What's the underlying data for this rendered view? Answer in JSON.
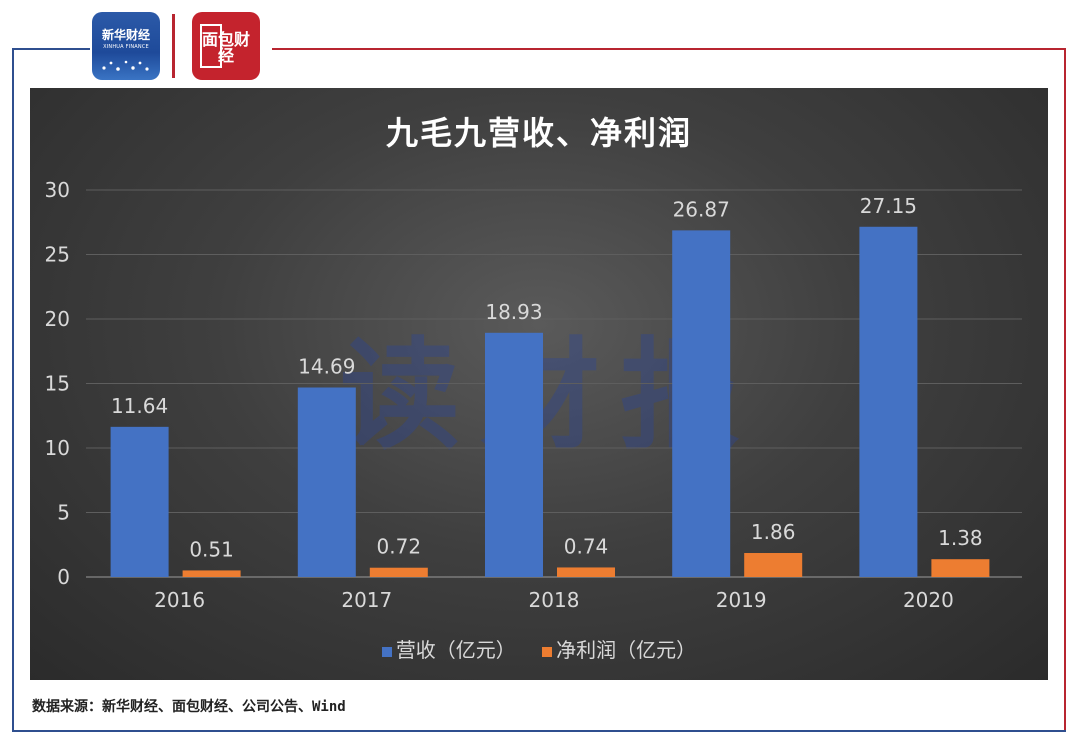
{
  "branding": {
    "xinhua_cn": "新华财经",
    "xinhua_en": "XINHUA FINANCE",
    "mianbao": "面包财经"
  },
  "watermark": "读财报",
  "source": "数据来源：新华财经、面包财经、公司公告、Wind",
  "colors": {
    "revenue": "#4472c4",
    "profit": "#ed7d31",
    "frame_blue": "#2f4f8f",
    "frame_red": "#b82530"
  },
  "chart_data": {
    "type": "bar",
    "title": "九毛九营收、净利润",
    "categories": [
      "2016",
      "2017",
      "2018",
      "2019",
      "2020"
    ],
    "series": [
      {
        "name": "营收（亿元）",
        "values": [
          11.64,
          14.69,
          18.93,
          26.87,
          27.15
        ]
      },
      {
        "name": "净利润（亿元）",
        "values": [
          0.51,
          0.72,
          0.74,
          1.86,
          1.38
        ]
      }
    ],
    "data_labels": [
      [
        "11.64",
        "14.69",
        "18.93",
        "26.87",
        "27.15"
      ],
      [
        "0.51",
        "0.72",
        "0.74",
        "1.86",
        "1.38"
      ]
    ],
    "yticks": [
      "0",
      "5",
      "10",
      "15",
      "20",
      "25",
      "30"
    ],
    "ylim": [
      0,
      30
    ],
    "grid": true,
    "legend_position": "bottom"
  }
}
